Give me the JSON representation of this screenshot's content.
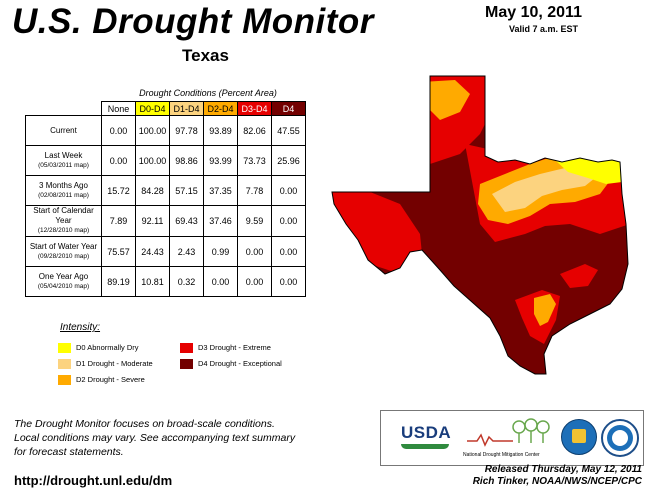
{
  "header": {
    "title": "U.S. Drought Monitor",
    "date": "May 10, 2011",
    "valid": "Valid 7 a.m. EST",
    "region": "Texas"
  },
  "table": {
    "caption": "Drought Conditions (Percent Area)",
    "columns": [
      "None",
      "D0-D4",
      "D1-D4",
      "D2-D4",
      "D3-D4",
      "D4"
    ],
    "column_colors": [
      "#ffffff",
      "#ffff00",
      "#fcd37f",
      "#ffaa00",
      "#e60000",
      "#730000"
    ],
    "rows": [
      {
        "label": "Current",
        "sub": "",
        "values": [
          "0.00",
          "100.00",
          "97.78",
          "93.89",
          "82.06",
          "47.55"
        ]
      },
      {
        "label": "Last Week",
        "sub": "(05/03/2011 map)",
        "values": [
          "0.00",
          "100.00",
          "98.86",
          "93.99",
          "73.73",
          "25.96"
        ]
      },
      {
        "label": "3 Months Ago",
        "sub": "(02/08/2011 map)",
        "values": [
          "15.72",
          "84.28",
          "57.15",
          "37.35",
          "7.78",
          "0.00"
        ]
      },
      {
        "label": "Start of Calendar Year",
        "sub": "(12/28/2010 map)",
        "values": [
          "7.89",
          "92.11",
          "69.43",
          "37.46",
          "9.59",
          "0.00"
        ]
      },
      {
        "label": "Start of Water Year",
        "sub": "(09/28/2010 map)",
        "values": [
          "75.57",
          "24.43",
          "2.43",
          "0.99",
          "0.00",
          "0.00"
        ]
      },
      {
        "label": "One Year Ago",
        "sub": "(05/04/2010 map)",
        "values": [
          "89.19",
          "10.81",
          "0.32",
          "0.00",
          "0.00",
          "0.00"
        ]
      }
    ]
  },
  "legend": {
    "title": "Intensity:",
    "items": [
      {
        "label": "D0 Abnormally Dry",
        "color": "#ffff00"
      },
      {
        "label": "D1 Drought - Moderate",
        "color": "#fcd37f"
      },
      {
        "label": "D2 Drought - Severe",
        "color": "#ffaa00"
      },
      {
        "label": "D3 Drought - Extreme",
        "color": "#e60000"
      },
      {
        "label": "D4 Drought - Exceptional",
        "color": "#730000"
      }
    ]
  },
  "footnote": {
    "lines": [
      "The Drought Monitor focuses on broad-scale conditions.",
      "Local conditions may vary. See accompanying text summary",
      "for forecast statements."
    ]
  },
  "url": "http://drought.unl.edu/dm",
  "logos": {
    "usda": "USDA",
    "ndmc": "National Drought Mitigation Center"
  },
  "credit": {
    "released": "Released Thursday, May 12, 2011",
    "author": "Rich Tinker, NOAA/NWS/NCEP/CPC"
  }
}
